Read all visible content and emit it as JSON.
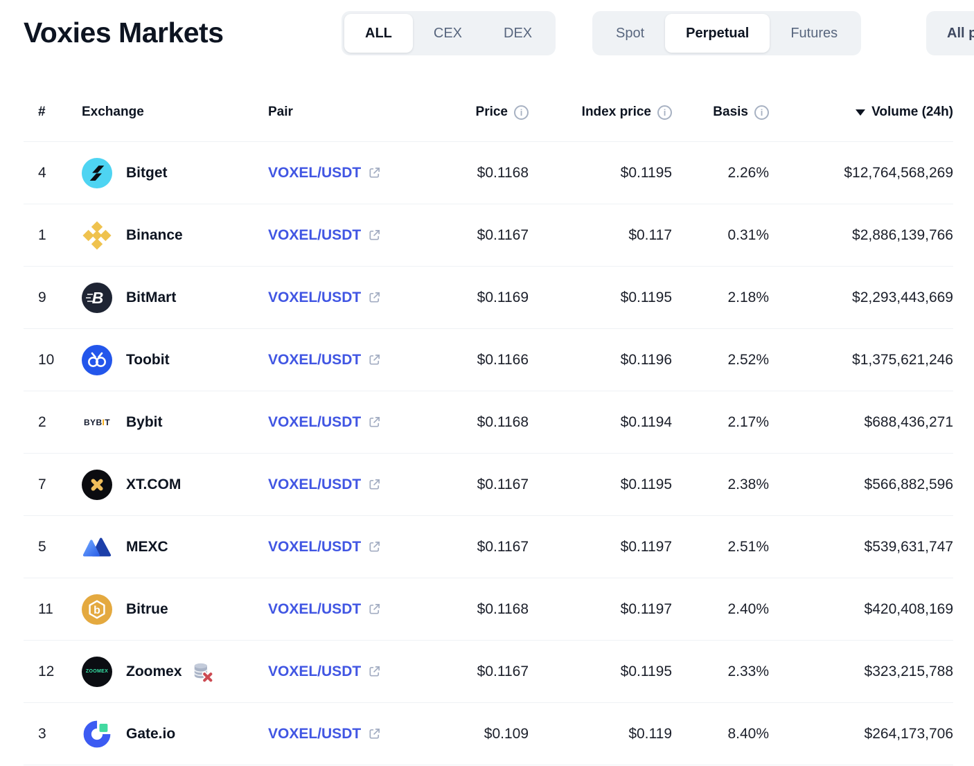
{
  "page": {
    "title": "Voxies Markets"
  },
  "tabs": {
    "market_type": [
      {
        "label": "ALL",
        "active": true
      },
      {
        "label": "CEX",
        "active": false
      },
      {
        "label": "DEX",
        "active": false
      }
    ],
    "category": [
      {
        "label": "Spot",
        "active": false
      },
      {
        "label": "Perpetual",
        "active": true
      },
      {
        "label": "Futures",
        "active": false
      }
    ],
    "pair_filter": {
      "label": "All pairs"
    }
  },
  "table": {
    "columns": {
      "rank": "#",
      "exchange": "Exchange",
      "pair": "Pair",
      "price": "Price",
      "index_price": "Index price",
      "basis": "Basis",
      "volume": "Volume (24h)"
    },
    "sort": {
      "column": "volume",
      "direction": "desc"
    },
    "rows": [
      {
        "rank": "4",
        "exchange": "Bitget",
        "icon": "bitget",
        "untracked": false,
        "pair": "VOXEL/USDT",
        "price": "$0.1168",
        "index_price": "$0.1195",
        "basis": "2.26%",
        "volume": "$12,764,568,269"
      },
      {
        "rank": "1",
        "exchange": "Binance",
        "icon": "binance",
        "untracked": false,
        "pair": "VOXEL/USDT",
        "price": "$0.1167",
        "index_price": "$0.117",
        "basis": "0.31%",
        "volume": "$2,886,139,766"
      },
      {
        "rank": "9",
        "exchange": "BitMart",
        "icon": "bitmart",
        "untracked": false,
        "pair": "VOXEL/USDT",
        "price": "$0.1169",
        "index_price": "$0.1195",
        "basis": "2.18%",
        "volume": "$2,293,443,669"
      },
      {
        "rank": "10",
        "exchange": "Toobit",
        "icon": "toobit",
        "untracked": false,
        "pair": "VOXEL/USDT",
        "price": "$0.1166",
        "index_price": "$0.1196",
        "basis": "2.52%",
        "volume": "$1,375,621,246"
      },
      {
        "rank": "2",
        "exchange": "Bybit",
        "icon": "bybit",
        "untracked": false,
        "pair": "VOXEL/USDT",
        "price": "$0.1168",
        "index_price": "$0.1194",
        "basis": "2.17%",
        "volume": "$688,436,271"
      },
      {
        "rank": "7",
        "exchange": "XT.COM",
        "icon": "xt",
        "untracked": false,
        "pair": "VOXEL/USDT",
        "price": "$0.1167",
        "index_price": "$0.1195",
        "basis": "2.38%",
        "volume": "$566,882,596"
      },
      {
        "rank": "5",
        "exchange": "MEXC",
        "icon": "mexc",
        "untracked": false,
        "pair": "VOXEL/USDT",
        "price": "$0.1167",
        "index_price": "$0.1197",
        "basis": "2.51%",
        "volume": "$539,631,747"
      },
      {
        "rank": "11",
        "exchange": "Bitrue",
        "icon": "bitrue",
        "untracked": false,
        "pair": "VOXEL/USDT",
        "price": "$0.1168",
        "index_price": "$0.1197",
        "basis": "2.40%",
        "volume": "$420,408,169"
      },
      {
        "rank": "12",
        "exchange": "Zoomex",
        "icon": "zoomex",
        "untracked": true,
        "pair": "VOXEL/USDT",
        "price": "$0.1167",
        "index_price": "$0.1195",
        "basis": "2.33%",
        "volume": "$323,215,788"
      },
      {
        "rank": "3",
        "exchange": "Gate.io",
        "icon": "gate",
        "untracked": false,
        "pair": "VOXEL/USDT",
        "price": "$0.109",
        "index_price": "$0.119",
        "basis": "8.40%",
        "volume": "$264,173,706"
      }
    ]
  },
  "icons": {
    "bybit_wordmark": "BYBIT",
    "zoomex_wordmark": "ZOOMEX",
    "bitmart_letter": "B",
    "bitrue_letter": "b"
  },
  "colors": {
    "heading_text": "#0D1421",
    "body_text": "#1B1F2A",
    "link_blue": "#4156E3",
    "inactive_tab_text": "#58667E",
    "tab_group_bg": "#EFF2F5",
    "divider": "#EFF2F5",
    "muted_icon": "#A7B1C2",
    "untracked_red": "#CC4A52",
    "bitget_cyan": "#4ED4F2",
    "binance_gold": "#EFC24E",
    "bitmart_dark": "#1E2433",
    "toobit_blue": "#2356EB",
    "bybit_accent": "#F7A600",
    "xt_gold": "#EFBE5B",
    "mexc_blue_light": "#6FA6FF",
    "mexc_blue_dark": "#1C3FA9",
    "bitrue_gold": "#E4A93F",
    "zoomex_green": "#36E3A6",
    "gate_blue": "#3C5BF2",
    "gate_green": "#42D9A0"
  }
}
